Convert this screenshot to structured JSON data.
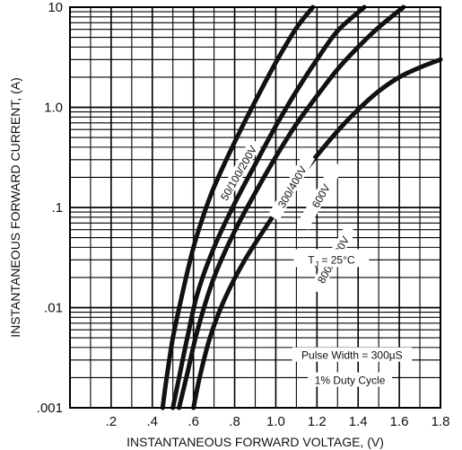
{
  "chart_data": {
    "type": "line",
    "xlabel": "INSTANTANEOUS FORWARD VOLTAGE, (V)",
    "ylabel": "INSTANTANEOUS FORWARD CURRENT, (A)",
    "xlim": [
      0,
      1.8
    ],
    "ylim": [
      0.001,
      10
    ],
    "yscale": "log",
    "grid": true,
    "x_ticks": [
      {
        "value": 0.2,
        "label": ".2"
      },
      {
        "value": 0.4,
        "label": ".4"
      },
      {
        "value": 0.6,
        "label": ".6"
      },
      {
        "value": 0.8,
        "label": ".8"
      },
      {
        "value": 1.0,
        "label": "1.0"
      },
      {
        "value": 1.2,
        "label": "1.2"
      },
      {
        "value": 1.4,
        "label": "1.4"
      },
      {
        "value": 1.6,
        "label": "1.6"
      },
      {
        "value": 1.8,
        "label": "1.8"
      }
    ],
    "y_ticks": [
      {
        "value": 10,
        "label": "10"
      },
      {
        "value": 1,
        "label": "1.0"
      },
      {
        "value": 0.1,
        "label": ".1"
      },
      {
        "value": 0.01,
        "label": ".01"
      },
      {
        "value": 0.001,
        "label": ".001"
      }
    ],
    "series": [
      {
        "name": "50/100/200V",
        "label_at": {
          "x": 0.82,
          "y": 0.22
        },
        "x": [
          0.45,
          0.47,
          0.5,
          0.55,
          0.6,
          0.65,
          0.7,
          0.8,
          0.9,
          1.0,
          1.1,
          1.18
        ],
        "y": [
          0.001,
          0.002,
          0.005,
          0.015,
          0.04,
          0.085,
          0.16,
          0.45,
          1.15,
          2.8,
          6.2,
          10
        ]
      },
      {
        "name": "300/400V",
        "label_at": {
          "x": 1.08,
          "y": 0.16
        },
        "x": [
          0.5,
          0.53,
          0.57,
          0.62,
          0.7,
          0.8,
          0.9,
          1.0,
          1.1,
          1.2,
          1.3,
          1.43
        ],
        "y": [
          0.001,
          0.002,
          0.005,
          0.014,
          0.04,
          0.11,
          0.27,
          0.65,
          1.45,
          3.0,
          5.8,
          10
        ]
      },
      {
        "name": "600V",
        "label_at": {
          "x": 1.22,
          "y": 0.13
        },
        "x": [
          0.53,
          0.57,
          0.62,
          0.7,
          0.8,
          0.9,
          1.0,
          1.1,
          1.2,
          1.3,
          1.4,
          1.5,
          1.62
        ],
        "y": [
          0.001,
          0.0022,
          0.006,
          0.02,
          0.058,
          0.14,
          0.32,
          0.68,
          1.3,
          2.4,
          4.0,
          6.3,
          10
        ]
      },
      {
        "name": "800/1000V",
        "label_at": {
          "x": 1.28,
          "y": 0.03
        },
        "x": [
          0.6,
          0.63,
          0.68,
          0.75,
          0.85,
          1.0,
          1.1,
          1.2,
          1.3,
          1.4,
          1.5,
          1.6,
          1.7,
          1.8
        ],
        "y": [
          0.001,
          0.002,
          0.005,
          0.012,
          0.03,
          0.09,
          0.18,
          0.33,
          0.58,
          0.95,
          1.45,
          2.0,
          2.5,
          3.0
        ]
      }
    ],
    "annotations": [
      {
        "id": "tj",
        "text": "TJ = 25°C",
        "main": "T",
        "sub": "J",
        "rest": " = 25°C",
        "x": 1.27,
        "y": 0.03
      },
      {
        "id": "pulse-width",
        "text": "Pulse Width = 300µS",
        "x": 1.37,
        "y": 0.0032
      },
      {
        "id": "duty-cycle",
        "text": "1% Duty Cycle",
        "x": 1.36,
        "y": 0.0018
      }
    ]
  }
}
